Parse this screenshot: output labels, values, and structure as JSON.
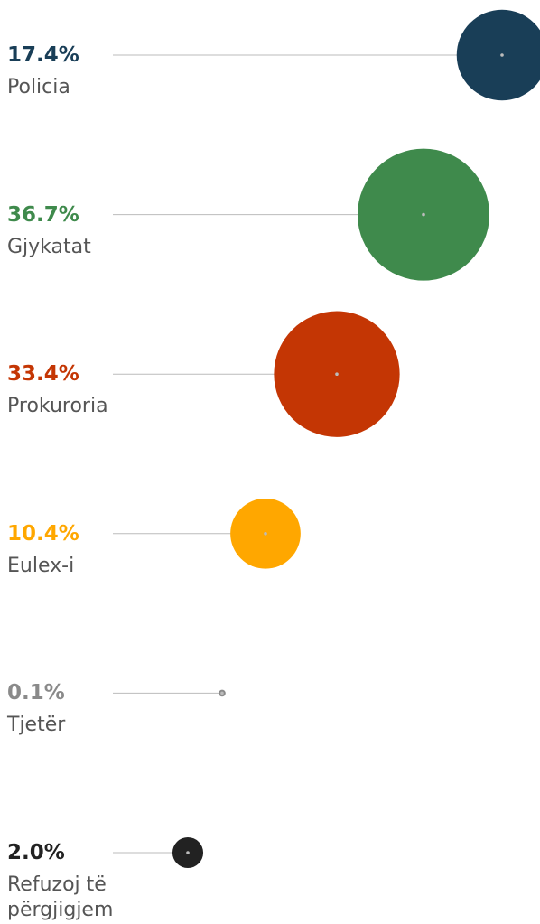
{
  "chart_data": {
    "type": "bubble",
    "categories": [
      "Policia",
      "Gjykatat",
      "Prokuroria",
      "Eulex-i",
      "Tjetër",
      "Refuzoj të përgjigjem"
    ],
    "values": [
      17.4,
      36.7,
      33.4,
      10.4,
      0.1,
      2.0
    ],
    "value_labels": [
      "17.4%",
      "36.7%",
      "33.4%",
      "10.4%",
      "0.1%",
      "2.0%"
    ],
    "colors": [
      "#193e57",
      "#3f8a4c",
      "#c43604",
      "#ffa700",
      "#8a8a8a",
      "#222222"
    ]
  }
}
